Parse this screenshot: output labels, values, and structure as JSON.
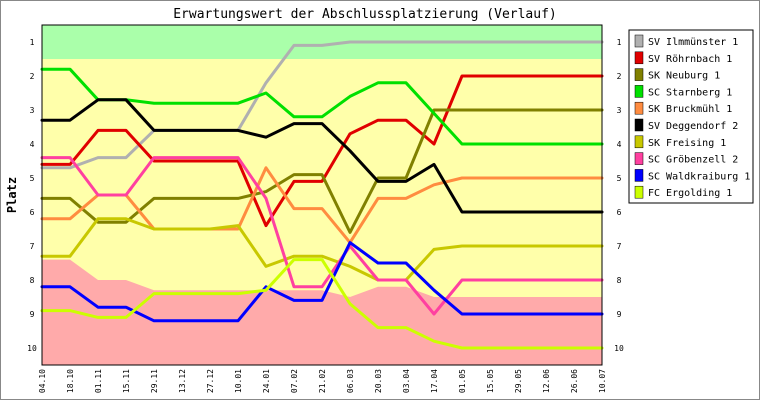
{
  "chart_data": {
    "type": "line",
    "title": "Erwartungswert der Abschlussplatzierung (Verlauf)",
    "ylabel": "Platz",
    "xlabel": "",
    "x": [
      "04.10",
      "18.10",
      "01.11",
      "15.11",
      "29.11",
      "13.12",
      "27.12",
      "10.01",
      "24.01",
      "07.02",
      "21.02",
      "06.03",
      "20.03",
      "03.04",
      "17.04",
      "01.05",
      "15.05",
      "29.05",
      "12.06",
      "26.06",
      "10.07"
    ],
    "yticks": [
      1,
      2,
      3,
      4,
      5,
      6,
      7,
      8,
      9,
      10
    ],
    "ylim": [
      0.5,
      10.5
    ],
    "y_inverted": true,
    "grid": false,
    "legend_position": "right",
    "bands": [
      {
        "name": "promotion",
        "color": "#aaffaa"
      },
      {
        "name": "mid",
        "color": "#ffffaa"
      },
      {
        "name": "relegation",
        "color": "#ffaaaa"
      }
    ],
    "band_boundaries": {
      "x": [
        "04.10",
        "18.10",
        "01.11",
        "15.11",
        "29.11",
        "13.12",
        "27.12",
        "10.01",
        "24.01",
        "07.02",
        "21.02",
        "06.03",
        "20.03",
        "03.04",
        "17.04",
        "01.05",
        "15.05",
        "29.05",
        "12.06",
        "26.06",
        "10.07"
      ],
      "promotion_lower": [
        1.5,
        1.5,
        1.5,
        1.5,
        1.5,
        1.5,
        1.5,
        1.5,
        1.5,
        1.5,
        1.5,
        1.5,
        1.5,
        1.5,
        1.5,
        1.5,
        1.5,
        1.5,
        1.5,
        1.5,
        1.5
      ],
      "relegation_upper": [
        7.4,
        7.4,
        8.0,
        8.0,
        8.3,
        8.3,
        8.3,
        8.3,
        8.3,
        8.3,
        8.3,
        8.5,
        8.2,
        8.2,
        8.5,
        8.5,
        8.5,
        8.5,
        8.5,
        8.5,
        8.5
      ]
    },
    "series": [
      {
        "name": "SV Ilmmünster 1",
        "color": "#b0b0b0",
        "values": [
          4.7,
          4.7,
          4.4,
          4.4,
          3.6,
          3.6,
          3.6,
          3.6,
          2.2,
          1.1,
          1.1,
          1.0,
          1.0,
          1.0,
          1.0,
          1.0,
          1.0,
          1.0,
          1.0,
          1.0,
          1.0
        ]
      },
      {
        "name": "SV Röhrnbach 1",
        "color": "#e00000",
        "values": [
          4.6,
          4.6,
          3.6,
          3.6,
          4.5,
          4.5,
          4.5,
          4.5,
          6.4,
          5.1,
          5.1,
          3.7,
          3.3,
          3.3,
          4.0,
          2.0,
          2.0,
          2.0,
          2.0,
          2.0,
          2.0
        ]
      },
      {
        "name": "SK Neuburg 1",
        "color": "#808000",
        "values": [
          5.6,
          5.6,
          6.3,
          6.3,
          5.6,
          5.6,
          5.6,
          5.6,
          5.4,
          4.9,
          4.9,
          6.6,
          5.0,
          5.0,
          3.0,
          3.0,
          3.0,
          3.0,
          3.0,
          3.0,
          3.0
        ]
      },
      {
        "name": "SC Starnberg 1",
        "color": "#00e000",
        "values": [
          1.8,
          1.8,
          2.7,
          2.7,
          2.8,
          2.8,
          2.8,
          2.8,
          2.5,
          3.2,
          3.2,
          2.6,
          2.2,
          2.2,
          3.1,
          4.0,
          4.0,
          4.0,
          4.0,
          4.0,
          4.0
        ]
      },
      {
        "name": "SK Bruckmühl 1",
        "color": "#ff8c40",
        "values": [
          6.2,
          6.2,
          5.5,
          5.5,
          6.5,
          6.5,
          6.5,
          6.5,
          4.7,
          5.9,
          5.9,
          6.9,
          5.6,
          5.6,
          5.2,
          5.0,
          5.0,
          5.0,
          5.0,
          5.0,
          5.0
        ]
      },
      {
        "name": "SV Deggendorf 2",
        "color": "#000000",
        "values": [
          3.3,
          3.3,
          2.7,
          2.7,
          3.6,
          3.6,
          3.6,
          3.6,
          3.8,
          3.4,
          3.4,
          4.2,
          5.1,
          5.1,
          4.6,
          6.0,
          6.0,
          6.0,
          6.0,
          6.0,
          6.0
        ]
      },
      {
        "name": "SK Freising 1",
        "color": "#c8c800",
        "values": [
          7.3,
          7.3,
          6.2,
          6.2,
          6.5,
          6.5,
          6.5,
          6.4,
          7.6,
          7.3,
          7.3,
          7.6,
          8.0,
          8.0,
          7.1,
          7.0,
          7.0,
          7.0,
          7.0,
          7.0,
          7.0
        ]
      },
      {
        "name": "SC Gröbenzell 2",
        "color": "#ff40a0",
        "values": [
          4.4,
          4.4,
          5.5,
          5.5,
          4.4,
          4.4,
          4.4,
          4.4,
          5.6,
          8.2,
          8.2,
          7.0,
          8.0,
          8.0,
          9.0,
          8.0,
          8.0,
          8.0,
          8.0,
          8.0,
          8.0
        ]
      },
      {
        "name": "SC Waldkraiburg 1",
        "color": "#0000ff",
        "values": [
          8.2,
          8.2,
          8.8,
          8.8,
          9.2,
          9.2,
          9.2,
          9.2,
          8.2,
          8.6,
          8.6,
          6.9,
          7.5,
          7.5,
          8.3,
          9.0,
          9.0,
          9.0,
          9.0,
          9.0,
          9.0
        ]
      },
      {
        "name": "FC Ergolding 1",
        "color": "#ccff00",
        "values": [
          8.9,
          8.9,
          9.1,
          9.1,
          8.4,
          8.4,
          8.4,
          8.4,
          8.3,
          7.4,
          7.4,
          8.7,
          9.4,
          9.4,
          9.8,
          10.0,
          10.0,
          10.0,
          10.0,
          10.0,
          10.0
        ]
      }
    ]
  }
}
